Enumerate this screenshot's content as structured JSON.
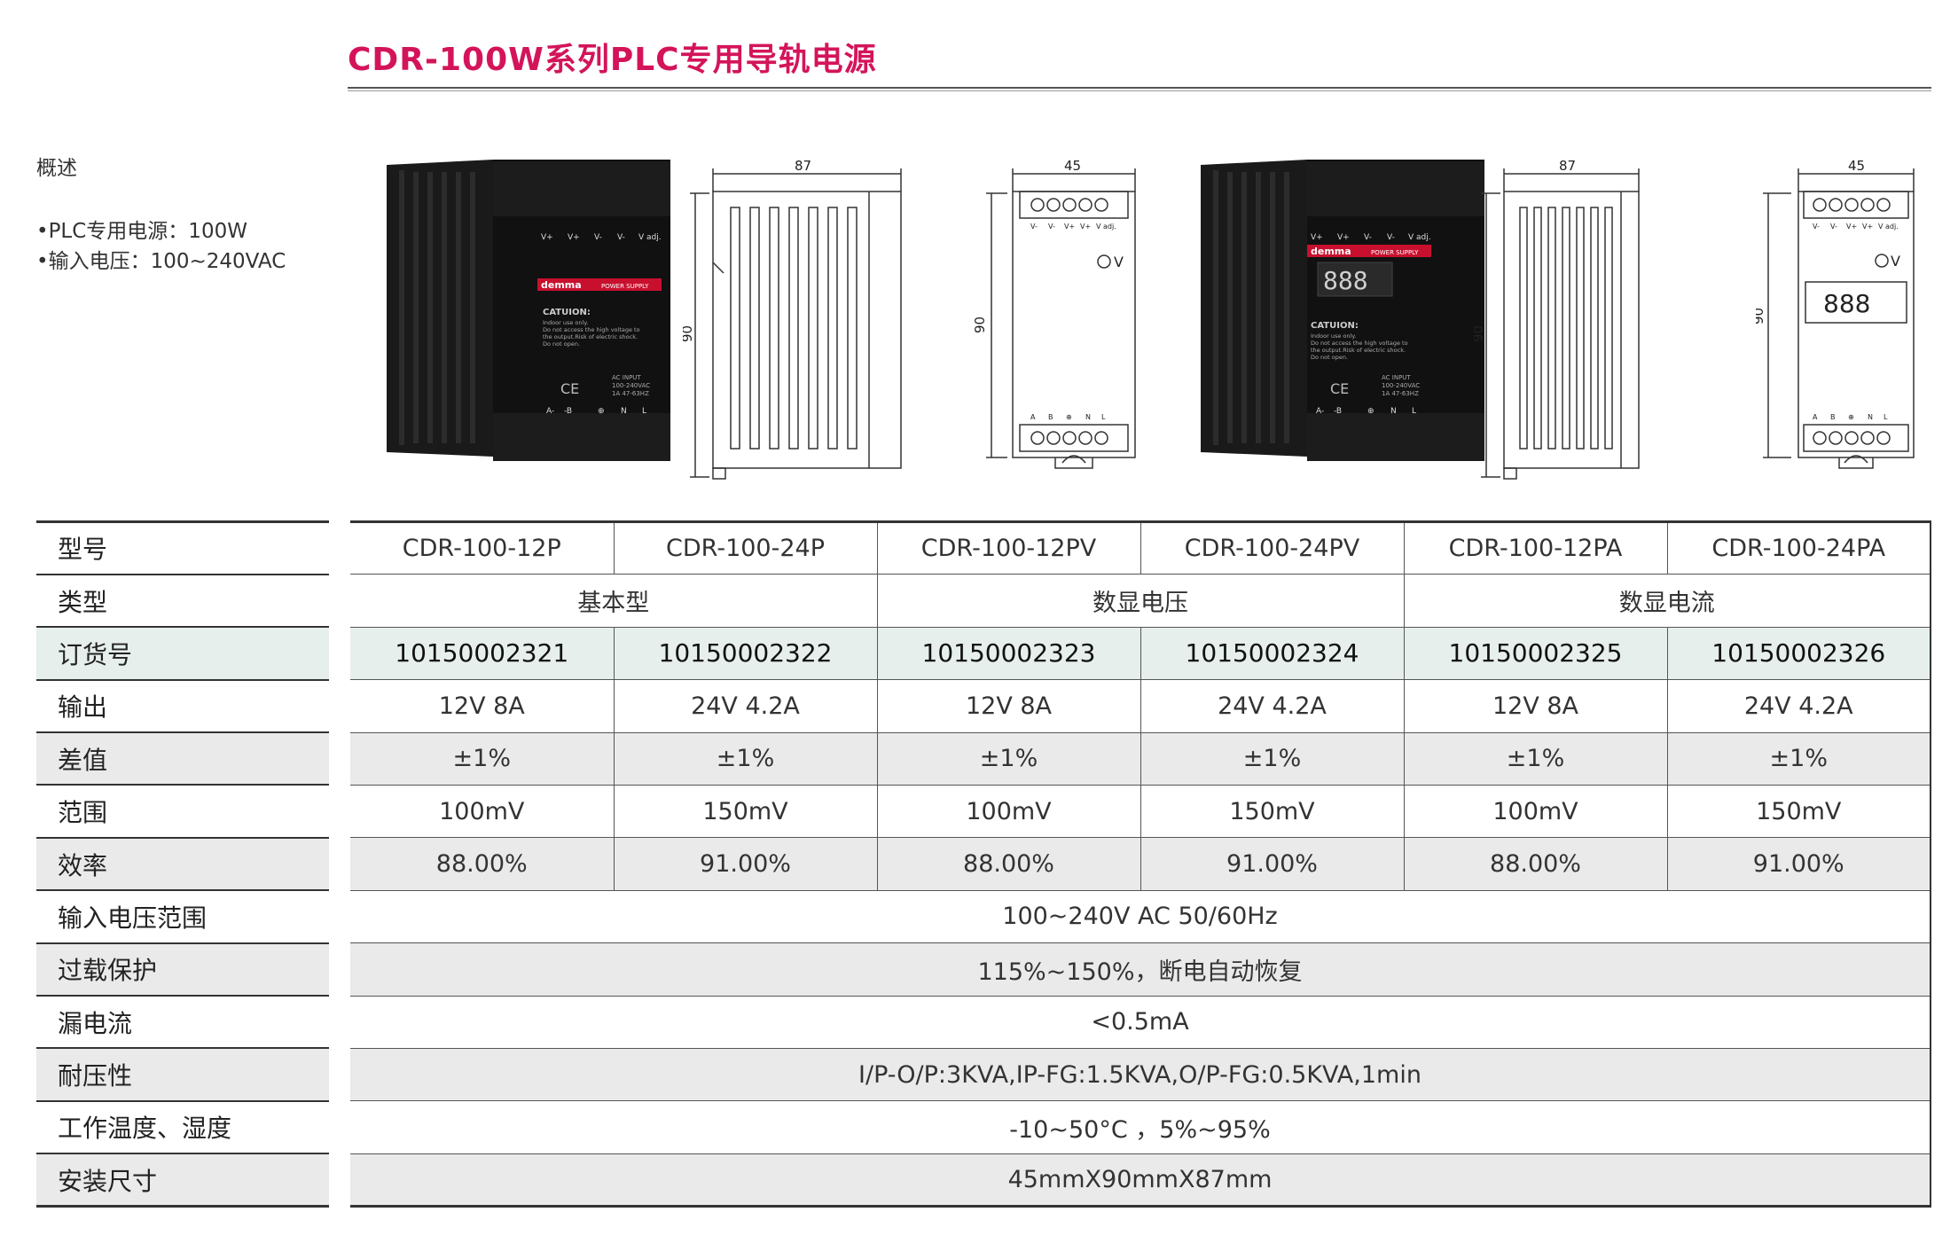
{
  "title": "CDR-100W系列PLC专用导轨电源",
  "overview": {
    "heading": "概述",
    "lines": [
      "•PLC专用电源：100W",
      "•输入电压：100~240VAC"
    ]
  },
  "products": {
    "p1": {
      "terminals_top": [
        "V+",
        "V+",
        "V-",
        "V-",
        "V adj."
      ],
      "brand": "demma",
      "tag": "POWER SUPPLY",
      "caution_title": "CATUION:",
      "caution_lines": [
        "Indoor use only.",
        "Do not access the high voltage to",
        "the output.Risk of electric shock.",
        "Do not open."
      ],
      "ce": "CE",
      "ac_lines": [
        "AC INPUT",
        "100-240VAC",
        "1A  47-63HZ"
      ],
      "terminals_bottom": [
        "A-",
        "-B",
        "⊕",
        "N",
        "L"
      ]
    },
    "p2": {
      "terminals_top": [
        "V+",
        "V+",
        "V-",
        "V-",
        "V adj."
      ],
      "brand": "demma",
      "tag": "POWER SUPPLY",
      "display": "888",
      "caution_title": "CATUION:",
      "caution_lines": [
        "Indoor use only.",
        "Do not access the high voltage to",
        "the output.Risk of electric shock.",
        "Do not open."
      ],
      "ce": "CE",
      "ac_lines": [
        "AC INPUT",
        "100-240VAC",
        "1A  47-63HZ"
      ],
      "terminals_bottom": [
        "A-",
        "-B",
        "⊕",
        "N",
        "L"
      ]
    }
  },
  "drawings": {
    "side_width": "87",
    "front_width": "45",
    "height": "90",
    "front_top_labels": [
      "V-",
      "V-",
      "V+",
      "V+",
      "V adj."
    ],
    "front_bottom_labels": [
      "A",
      "B",
      "⊕",
      "N",
      "L"
    ],
    "v_label": "V",
    "display": "888"
  },
  "table": {
    "labels": [
      "型号",
      "类型",
      "订货号",
      "输出",
      "差值",
      "范围",
      "效率",
      "输入电压范围",
      "过载保护",
      "漏电流",
      "耐压性",
      "工作温度、湿度",
      "安装尺寸"
    ],
    "models": [
      "CDR-100-12P",
      "CDR-100-24P",
      "CDR-100-12PV",
      "CDR-100-24PV",
      "CDR-100-12PA",
      "CDR-100-24PA"
    ],
    "types": [
      "基本型",
      "数显电压",
      "数显电流"
    ],
    "order_numbers": [
      "10150002321",
      "10150002322",
      "10150002323",
      "10150002324",
      "10150002325",
      "10150002326"
    ],
    "output": [
      "12V 8A",
      "24V 4.2A",
      "12V 8A",
      "24V 4.2A",
      "12V 8A",
      "24V 4.2A"
    ],
    "deviation": [
      "±1%",
      "±1%",
      "±1%",
      "±1%",
      "±1%",
      "±1%"
    ],
    "range": [
      "100mV",
      "150mV",
      "100mV",
      "150mV",
      "100mV",
      "150mV"
    ],
    "efficiency": [
      "88.00%",
      "91.00%",
      "88.00%",
      "91.00%",
      "88.00%",
      "91.00%"
    ],
    "input_voltage": "100~240V  AC 50/60Hz",
    "overload": "115%~150%，断电自动恢复",
    "leakage": "<0.5mA",
    "withstand": "I/P-O/P:3KVA,IP-FG:1.5KVA,O/P-FG:0.5KVA,1min",
    "temp_humidity": "-10~50°C ，5%~95%",
    "dimensions": "45mmX90mmX87mm"
  }
}
